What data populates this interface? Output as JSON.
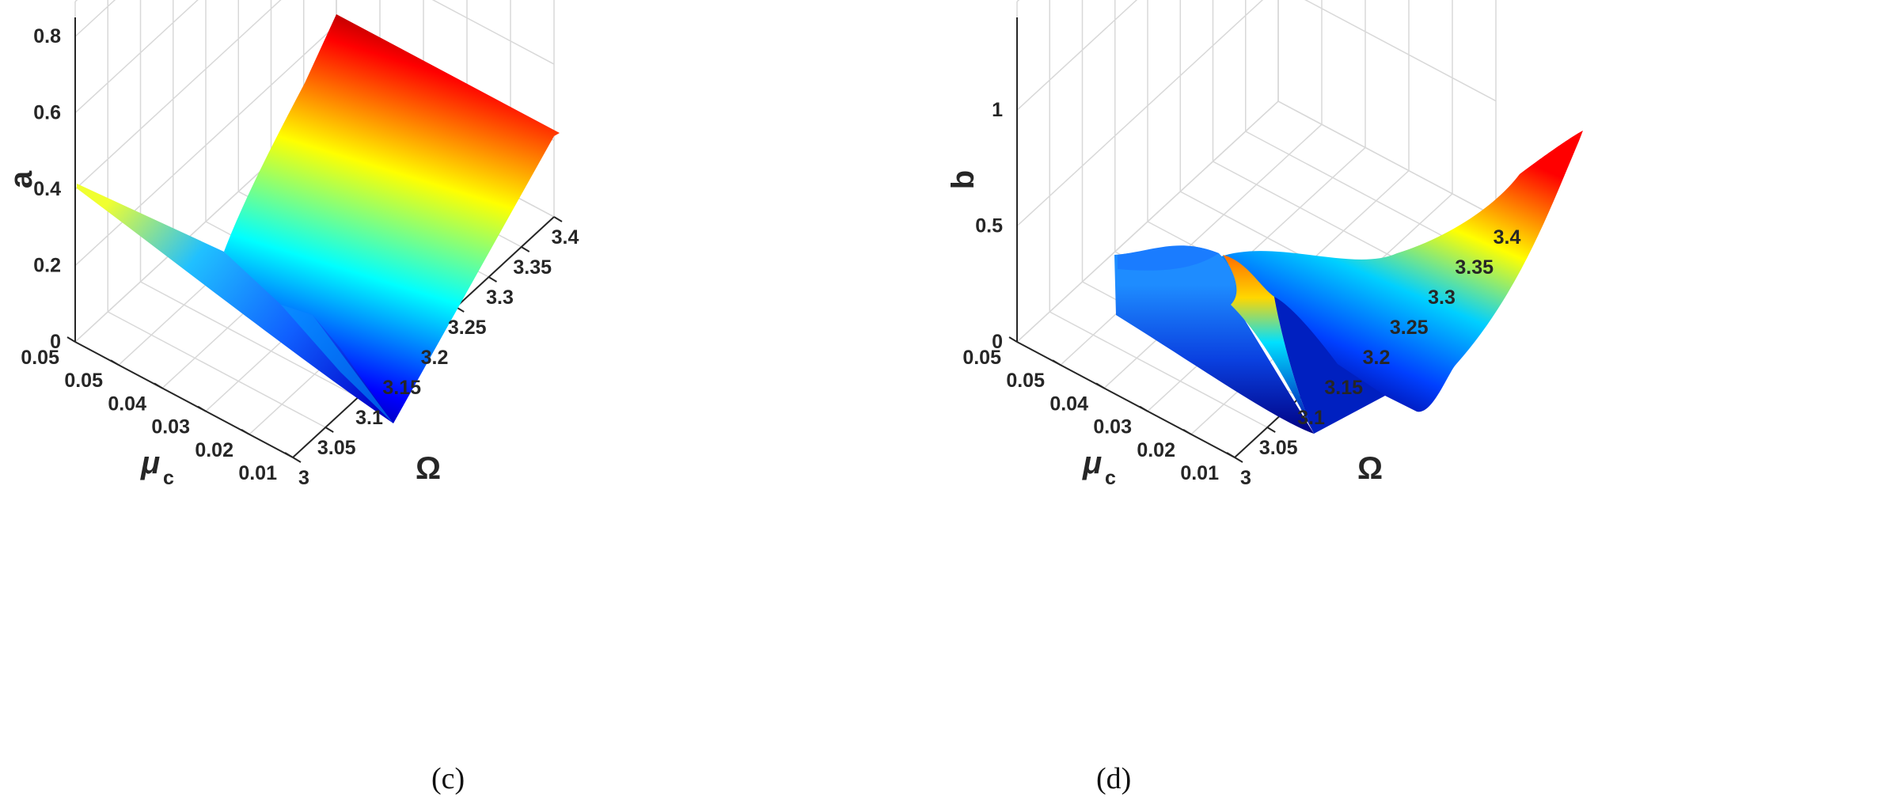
{
  "chart_data": [
    {
      "type": "surface",
      "panel_label": "(c)",
      "z_label": "a",
      "x_label": "Ω",
      "y_label": "μ",
      "y_label_sub": "c",
      "z_ticks": [
        "0",
        "0.2",
        "0.4",
        "0.6",
        "0.8"
      ],
      "x_ticks": [
        "3",
        "3.05",
        "3.1",
        "3.15",
        "3.2",
        "3.25",
        "3.3",
        "3.35",
        "3.4"
      ],
      "y_ticks": [
        "0.01",
        "0.02",
        "0.03",
        "0.04",
        "0.05"
      ],
      "x_range": [
        3,
        3.4
      ],
      "y_range": [
        0,
        0.05
      ],
      "z_range": [
        0,
        0.85
      ],
      "grid": true,
      "colormap": "jet",
      "profile_x": [
        3.0,
        3.05,
        3.1,
        3.15,
        3.2,
        3.25,
        3.3,
        3.35,
        3.4
      ],
      "profile_z": [
        0.5,
        0.33,
        0.17,
        0.0,
        0.2,
        0.45,
        0.65,
        0.78,
        0.85
      ]
    },
    {
      "type": "surface",
      "panel_label": "(d)",
      "z_label": "b",
      "x_label": "Ω",
      "y_label": "μ",
      "y_label_sub": "c",
      "z_ticks": [
        "0",
        "0.5",
        "1"
      ],
      "x_ticks": [
        "3",
        "3.05",
        "3.1",
        "3.15",
        "3.2",
        "3.25",
        "3.3",
        "3.35",
        "3.4"
      ],
      "y_ticks": [
        "0.01",
        "0.02",
        "0.03",
        "0.04",
        "0.05"
      ],
      "x_range": [
        3,
        3.4
      ],
      "y_range": [
        0,
        0.05
      ],
      "z_range": [
        0,
        1.4
      ],
      "grid": true,
      "colormap": "jet",
      "profile_x": [
        3.0,
        3.05,
        3.1,
        3.15,
        3.2,
        3.25,
        3.3,
        3.35,
        3.4
      ],
      "profile_z": [
        0.45,
        0.38,
        0.15,
        0.0,
        0.12,
        0.4,
        0.7,
        1.0,
        1.2
      ]
    }
  ]
}
